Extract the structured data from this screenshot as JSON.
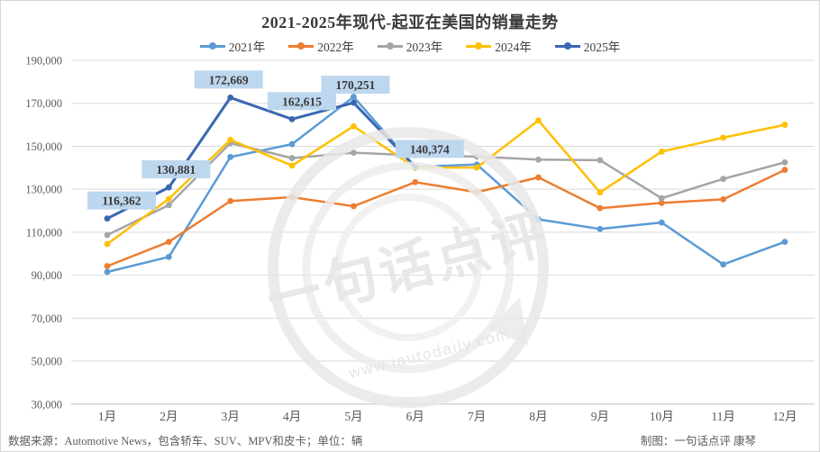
{
  "title": "2021-2025年现代-起亚在美国的销量走势",
  "chart_data": {
    "type": "line",
    "title": "2021-2025年现代-起亚在美国的销量走势",
    "categories": [
      "1月",
      "2月",
      "3月",
      "4月",
      "5月",
      "6月",
      "7月",
      "8月",
      "9月",
      "10月",
      "11月",
      "12月"
    ],
    "ylim": [
      30000,
      190000
    ],
    "y_tick_step": 20000,
    "y_tick_labels": [
      "190,000",
      "170,000",
      "150,000",
      "130,000",
      "110,000",
      "90,000",
      "70,000",
      "50,000",
      "30,000"
    ],
    "grid": "horizontal",
    "legend_position": "top",
    "series": [
      {
        "name": "2021年",
        "color": "#5B9BD5",
        "values": [
          91500,
          98500,
          145000,
          151000,
          173000,
          140400,
          141500,
          116000,
          111500,
          114500,
          95000,
          105500
        ]
      },
      {
        "name": "2022年",
        "color": "#ED7D31",
        "values": [
          94200,
          105500,
          124500,
          126300,
          122100,
          133300,
          128600,
          135500,
          121200,
          123600,
          125300,
          139000
        ]
      },
      {
        "name": "2023年",
        "color": "#A5A5A5",
        "values": [
          108700,
          122600,
          151500,
          144500,
          147000,
          145800,
          145200,
          143800,
          143500,
          125800,
          134800,
          142500
        ]
      },
      {
        "name": "2024年",
        "color": "#FFC000",
        "values": [
          104500,
          125500,
          153000,
          141000,
          159300,
          140000,
          140100,
          162000,
          128500,
          147500,
          154000,
          160000
        ]
      },
      {
        "name": "2025年",
        "color": "#3A67B1",
        "values": [
          116362,
          130881,
          172669,
          162615,
          170251,
          140374
        ],
        "point_labels": [
          "116,362",
          "130,881",
          "172,669",
          "162,615",
          "170,251",
          "140,374"
        ],
        "label_dx": [
          16,
          8,
          -2,
          11,
          2,
          16
        ]
      }
    ],
    "label_box_color": "#BDD7EE",
    "grid_color": "#D9D9D9",
    "axis_text_color": "#595959"
  },
  "footer": {
    "source": "数据来源：Automotive News，包含轿车、SUV、MPV和皮卡；单位：辆",
    "credit": "制图：一句话点评  康琴"
  },
  "watermark": {
    "text": "一句话点评",
    "url": "www.iautodaily.com"
  }
}
